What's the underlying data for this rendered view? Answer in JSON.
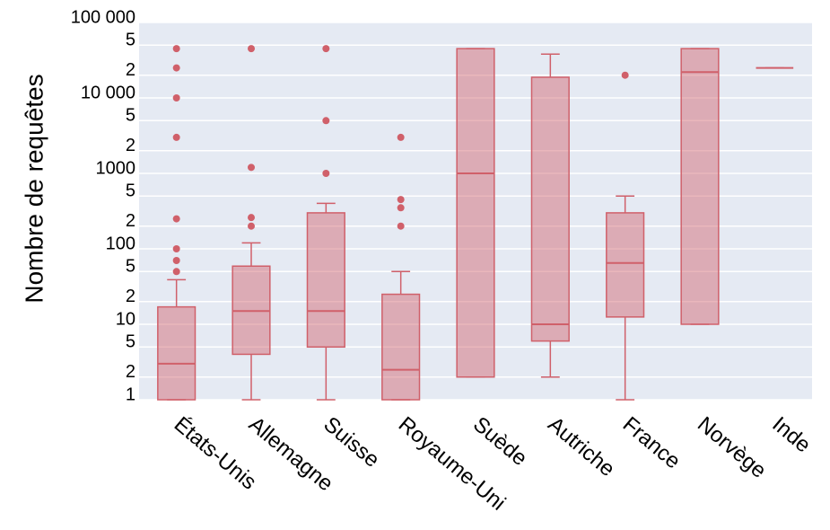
{
  "chart_data": {
    "type": "box",
    "y_label": "Nombre de requêtes",
    "categories": [
      "États-Unis",
      "Allemagne",
      "Suisse",
      "Royaume-Uni",
      "Suède",
      "Autriche",
      "France",
      "Norvège",
      "Inde"
    ],
    "boxes": [
      {
        "whislo": 1,
        "q1": 1,
        "med": 3,
        "q3": 17,
        "whishi": 39,
        "fliers": [
          50,
          70,
          100,
          250,
          3000,
          10000,
          25000,
          45000
        ]
      },
      {
        "whislo": 1,
        "q1": 4,
        "med": 15,
        "q3": 59,
        "whishi": 120,
        "fliers": [
          200,
          260,
          1200,
          45000
        ]
      },
      {
        "whislo": 1,
        "q1": 5,
        "med": 15,
        "q3": 300,
        "whishi": 400,
        "fliers": [
          1000,
          5000,
          45000
        ]
      },
      {
        "whislo": 1,
        "q1": 1,
        "med": 2.5,
        "q3": 25,
        "whishi": 50,
        "fliers": [
          200,
          350,
          450,
          3000
        ]
      },
      {
        "whislo": 2,
        "q1": 2,
        "med": 1000,
        "q3": 45000,
        "whishi": 45000,
        "fliers": []
      },
      {
        "whislo": 2,
        "q1": 6,
        "med": 10,
        "q3": 18800,
        "whishi": 38000,
        "fliers": []
      },
      {
        "whislo": 1,
        "q1": 12.5,
        "med": 65,
        "q3": 300,
        "whishi": 500,
        "fliers": [
          20000
        ]
      },
      {
        "whislo": 10,
        "q1": 10,
        "med": 22000,
        "q3": 45000,
        "whishi": 45000,
        "fliers": []
      },
      {
        "whislo": 25000,
        "q1": 25000,
        "med": 25000,
        "q3": 25000,
        "whishi": 25000,
        "fliers": []
      }
    ],
    "color": "#d0606a",
    "log_scale": true,
    "grid": true,
    "ylim": [
      1,
      100000
    ],
    "yticks": [
      1,
      2,
      5,
      10,
      {
        "value": 20,
        "label": "2"
      },
      {
        "value": 50,
        "label": "5"
      },
      100,
      {
        "value": 200,
        "label": "2"
      },
      {
        "value": 500,
        "label": "5"
      },
      1000,
      {
        "value": 2000,
        "label": "2"
      },
      {
        "value": 5000,
        "label": "5"
      },
      {
        "value": 10000,
        "label": "10 000"
      },
      {
        "value": 20000,
        "label": "2"
      },
      {
        "value": 50000,
        "label": "5"
      },
      {
        "value": 100000,
        "label": "100 000"
      }
    ]
  }
}
